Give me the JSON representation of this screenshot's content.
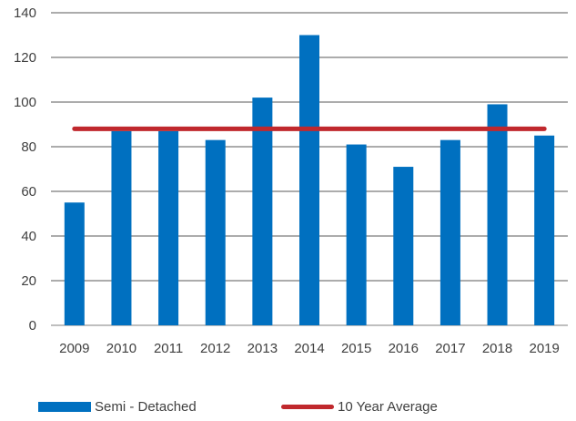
{
  "chart_data": {
    "type": "bar",
    "categories": [
      "2009",
      "2010",
      "2011",
      "2012",
      "2013",
      "2014",
      "2015",
      "2016",
      "2017",
      "2018",
      "2019"
    ],
    "series": [
      {
        "name": "Semi - Detached",
        "type": "bar",
        "color": "#0070C0",
        "values": [
          55,
          87,
          87,
          83,
          102,
          130,
          81,
          71,
          83,
          99,
          85
        ]
      },
      {
        "name": "10 Year Average",
        "type": "line",
        "color": "#C0282D",
        "values": [
          88,
          88,
          88,
          88,
          88,
          88,
          88,
          88,
          88,
          88,
          88
        ]
      }
    ],
    "yticks": [
      "0",
      "20",
      "40",
      "60",
      "80",
      "100",
      "120",
      "140"
    ],
    "ylim": [
      0,
      140
    ],
    "grid": true,
    "legend_position": "bottom",
    "title": "",
    "xlabel": "",
    "ylabel": ""
  }
}
